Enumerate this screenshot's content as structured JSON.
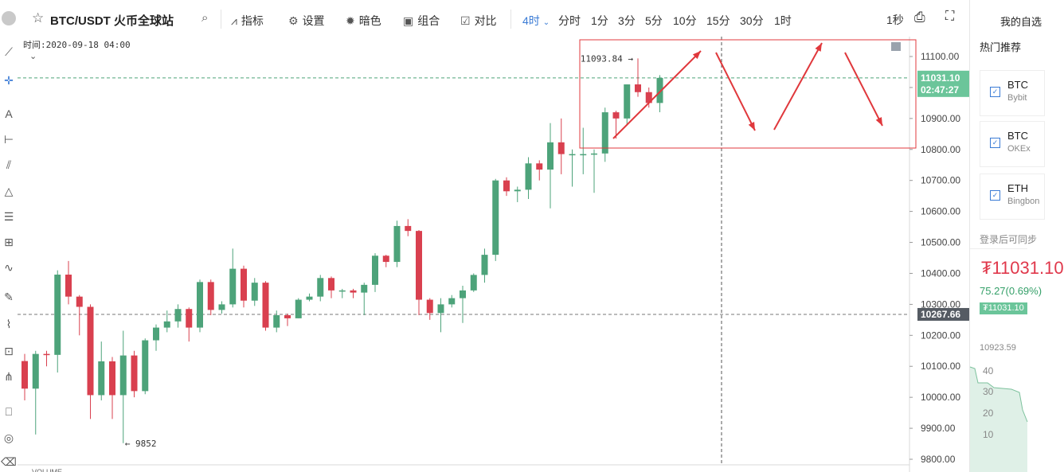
{
  "header": {
    "symbol": "BTC/USDT 火币全球站",
    "tools": [
      {
        "icon": "indicator-icon",
        "label": "指标"
      },
      {
        "icon": "settings-icon",
        "label": "设置"
      },
      {
        "icon": "theme-icon",
        "label": "暗色"
      },
      {
        "icon": "combo-icon",
        "label": "组合"
      },
      {
        "icon": "compare-icon",
        "label": "对比"
      }
    ],
    "active_period": "4时",
    "periods": [
      "分时",
      "1分",
      "3分",
      "5分",
      "10分",
      "15分",
      "30分",
      "1时"
    ],
    "refresh": "1秒"
  },
  "chart_info": {
    "time_label": "时间:2020-09-18 04:00",
    "high_label": "11093.84 →",
    "low_label": "← 9852",
    "current_price": "11031.10",
    "countdown": "02:47:27",
    "dashed_price": "10267.66",
    "volume_label": "VOLUME"
  },
  "chart_data": {
    "type": "candlestick",
    "y_ticks": [
      "11100.00",
      "11000.00",
      "10900.00",
      "10800.00",
      "10700.00",
      "10600.00",
      "10500.00",
      "10400.00",
      "10300.00",
      "10200.00",
      "10100.00",
      "10000.00",
      "9900.00",
      "9800.00"
    ],
    "ylim": [
      9800,
      11100
    ],
    "candles": [
      [
        10117,
        10028,
        10140,
        9990
      ],
      [
        10028,
        10140,
        10150,
        9880
      ],
      [
        10140,
        10137,
        10150,
        10100
      ],
      [
        10137,
        10396,
        10410,
        10080
      ],
      [
        10396,
        10325,
        10440,
        10300
      ],
      [
        10325,
        10292,
        10330,
        10200
      ],
      [
        10292,
        10007,
        10300,
        9930
      ],
      [
        10007,
        10116,
        10180,
        9990
      ],
      [
        10116,
        10007,
        10130,
        9930
      ],
      [
        10007,
        10135,
        10215,
        9852
      ],
      [
        10135,
        10020,
        10150,
        10000
      ],
      [
        10020,
        10184,
        10190,
        10010
      ],
      [
        10184,
        10225,
        10235,
        10150
      ],
      [
        10225,
        10245,
        10280,
        10210
      ],
      [
        10245,
        10285,
        10300,
        10225
      ],
      [
        10285,
        10225,
        10290,
        10180
      ],
      [
        10225,
        10372,
        10380,
        10210
      ],
      [
        10372,
        10282,
        10380,
        10265
      ],
      [
        10282,
        10300,
        10310,
        10270
      ],
      [
        10300,
        10415,
        10480,
        10290
      ],
      [
        10415,
        10312,
        10425,
        10290
      ],
      [
        10312,
        10370,
        10385,
        10295
      ],
      [
        10370,
        10225,
        10375,
        10215
      ],
      [
        10225,
        10265,
        10280,
        10210
      ],
      [
        10265,
        10255,
        10270,
        10230
      ],
      [
        10255,
        10315,
        10320,
        10255
      ],
      [
        10315,
        10325,
        10335,
        10310
      ],
      [
        10325,
        10385,
        10395,
        10310
      ],
      [
        10385,
        10345,
        10390,
        10320
      ],
      [
        10345,
        10345,
        10350,
        10320
      ],
      [
        10345,
        10338,
        10350,
        10320
      ],
      [
        10338,
        10363,
        10370,
        10265
      ],
      [
        10363,
        10457,
        10465,
        10340
      ],
      [
        10457,
        10437,
        10460,
        10420
      ],
      [
        10437,
        10553,
        10570,
        10420
      ],
      [
        10553,
        10537,
        10575,
        10520
      ],
      [
        10537,
        10315,
        10540,
        10265
      ],
      [
        10315,
        10272,
        10320,
        10250
      ],
      [
        10272,
        10300,
        10320,
        10210
      ],
      [
        10300,
        10320,
        10330,
        10290
      ],
      [
        10320,
        10345,
        10360,
        10240
      ],
      [
        10345,
        10395,
        10400,
        10340
      ],
      [
        10395,
        10460,
        10480,
        10370
      ],
      [
        10460,
        10700,
        10705,
        10440
      ],
      [
        10700,
        10665,
        10710,
        10650
      ],
      [
        10665,
        10670,
        10680,
        10630
      ],
      [
        10670,
        10755,
        10775,
        10640
      ],
      [
        10755,
        10735,
        10765,
        10700
      ],
      [
        10735,
        10823,
        10885,
        10610
      ],
      [
        10823,
        10785,
        10900,
        10720
      ],
      [
        10785,
        10785,
        10800,
        10680
      ],
      [
        10785,
        10785,
        10870,
        10720
      ],
      [
        10785,
        10787,
        10800,
        10660
      ],
      [
        10787,
        10920,
        10935,
        10760
      ],
      [
        10920,
        10900,
        10925,
        10835
      ],
      [
        10900,
        11010,
        11010,
        10880
      ],
      [
        11010,
        10985,
        11094,
        10970
      ],
      [
        10985,
        10950,
        11000,
        10935
      ],
      [
        10950,
        11031,
        11040,
        10920
      ]
    ]
  },
  "sidebar": {
    "tab": "我的自选",
    "hot": "热门推荐",
    "cards": [
      {
        "name": "BTC",
        "sub": "Bybit"
      },
      {
        "name": "BTC",
        "sub": "OKEx"
      },
      {
        "name": "ETH",
        "sub": "Bingbon"
      }
    ],
    "login_hint": "登录后可同步",
    "price": "₮11031.10",
    "change": "75.27(0.69%)",
    "badge": "₮11031.10",
    "mini_top": "10923.59",
    "mini_ticks": [
      "40",
      "30",
      "20",
      "10"
    ]
  },
  "colors": {
    "up": "#4da37a",
    "down": "#d9404f",
    "accent": "#3a7bd5",
    "annotation": "#e0383c"
  }
}
